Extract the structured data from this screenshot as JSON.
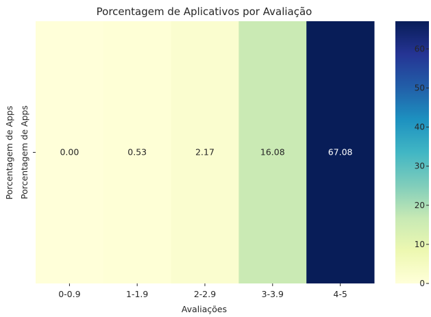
{
  "chart_data": {
    "type": "heatmap",
    "title": "Porcentagem de Aplicativos por Avaliação",
    "xlabel": "Avaliações",
    "ylabel": "Porcentagem de Apps",
    "categories": [
      "0-0.9",
      "1-1.9",
      "2-2.9",
      "3-3.9",
      "4-5"
    ],
    "rows": [
      "Porcentagem de Apps"
    ],
    "values": [
      [
        0.0,
        0.53,
        2.17,
        16.08,
        67.08
      ]
    ],
    "value_labels": [
      "0.00",
      "0.53",
      "2.17",
      "16.08",
      "67.08"
    ],
    "colorbar": {
      "colormap": "YlGnBu",
      "range": [
        0,
        67.08
      ],
      "ticks": [
        0,
        10,
        20,
        30,
        40,
        50,
        60
      ],
      "tick_labels": [
        "0",
        "10",
        "20",
        "30",
        "40",
        "50",
        "60"
      ]
    },
    "colors": {
      "cell_low": "#ffffd9",
      "cell_1": "#fefed6",
      "cell_2": "#fafdce",
      "cell_3": "#cbebb4",
      "cell_high": "#081d58"
    }
  }
}
